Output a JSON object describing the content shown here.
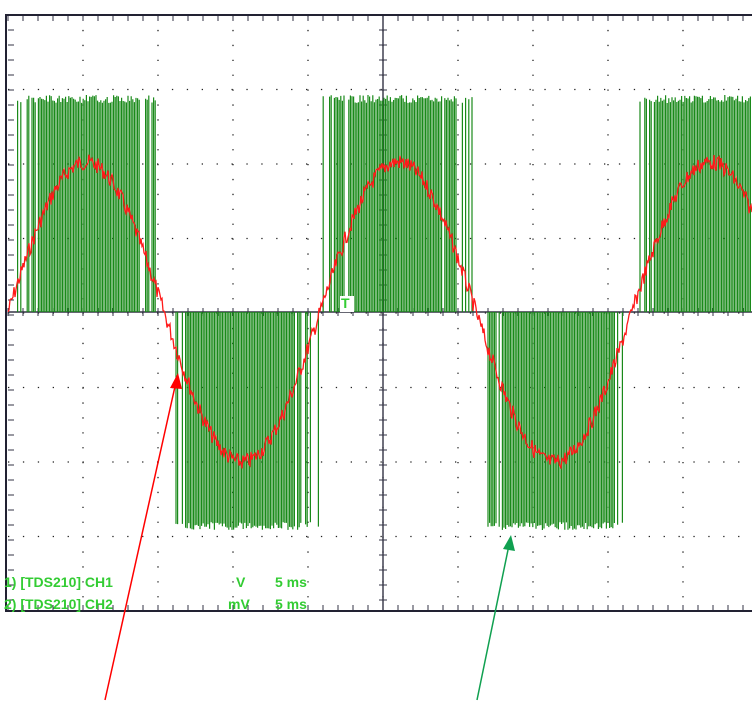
{
  "scope": {
    "trigger_marker": "T",
    "readouts": [
      {
        "source": "1) [TDS210] CH1",
        "unit": "V",
        "timebase": "5 ms"
      },
      {
        "source": "2) [TDS210] CH2",
        "unit": "mV",
        "timebase": "5 ms"
      }
    ]
  }
}
